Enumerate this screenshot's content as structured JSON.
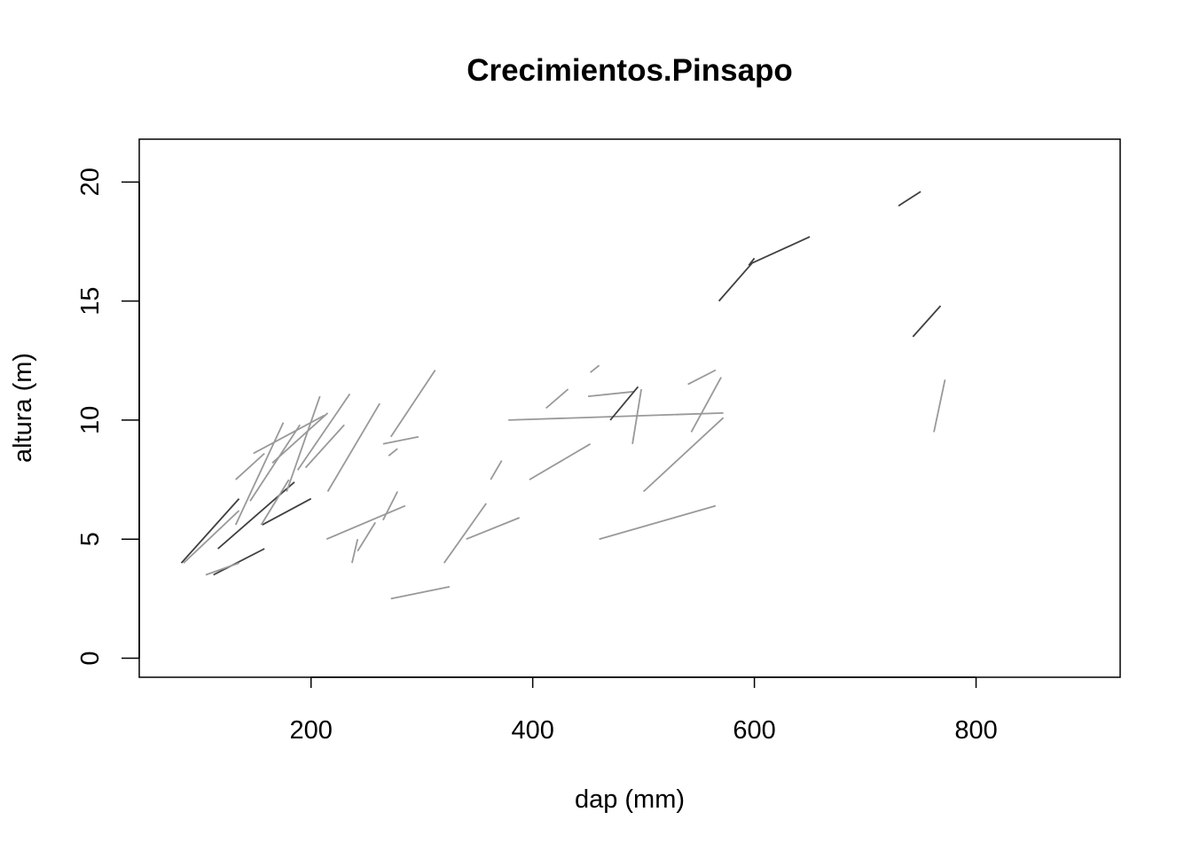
{
  "chart_data": {
    "type": "line",
    "title": "Crecimientos.Pinsapo",
    "xlabel": "dap (mm)",
    "ylabel": "altura (m)",
    "xlim": [
      45,
      930
    ],
    "ylim": [
      -0.8,
      21.8
    ],
    "x_ticks": [
      200,
      400,
      600,
      800
    ],
    "x_tick_labels": [
      "200",
      "400",
      "600",
      "800"
    ],
    "y_ticks": [
      0,
      5,
      10,
      15,
      20
    ],
    "y_tick_labels": [
      "0",
      "5",
      "10",
      "15",
      "20"
    ],
    "grid": false,
    "legend": "none",
    "colors": {
      "light": "#999999",
      "dark": "#404040"
    },
    "series": [
      {
        "shade": "dark",
        "x": [
          83,
          135
        ],
        "y": [
          4.0,
          6.7
        ]
      },
      {
        "shade": "dark",
        "x": [
          116,
          185
        ],
        "y": [
          4.6,
          7.4
        ]
      },
      {
        "shade": "dark",
        "x": [
          112,
          158
        ],
        "y": [
          3.5,
          4.6
        ]
      },
      {
        "shade": "dark",
        "x": [
          156,
          200
        ],
        "y": [
          5.6,
          6.7
        ]
      },
      {
        "shade": "light",
        "x": [
          85,
          135
        ],
        "y": [
          4.0,
          6.2
        ]
      },
      {
        "shade": "light",
        "x": [
          105,
          135
        ],
        "y": [
          3.5,
          4.0
        ]
      },
      {
        "shade": "light",
        "x": [
          132,
          158
        ],
        "y": [
          7.5,
          8.6
        ]
      },
      {
        "shade": "light",
        "x": [
          132,
          175
        ],
        "y": [
          5.6,
          9.9
        ]
      },
      {
        "shade": "light",
        "x": [
          145,
          190
        ],
        "y": [
          6.6,
          9.8
        ]
      },
      {
        "shade": "light",
        "x": [
          148,
          212
        ],
        "y": [
          8.6,
          10.2
        ]
      },
      {
        "shade": "light",
        "x": [
          155,
          180
        ],
        "y": [
          5.6,
          7.5
        ]
      },
      {
        "shade": "light",
        "x": [
          165,
          215
        ],
        "y": [
          8.2,
          10.3
        ]
      },
      {
        "shade": "light",
        "x": [
          178,
          208
        ],
        "y": [
          7.0,
          11.0
        ]
      },
      {
        "shade": "light",
        "x": [
          188,
          235
        ],
        "y": [
          7.9,
          11.1
        ]
      },
      {
        "shade": "light",
        "x": [
          195,
          230
        ],
        "y": [
          8.0,
          9.8
        ]
      },
      {
        "shade": "light",
        "x": [
          215,
          262
        ],
        "y": [
          7.0,
          10.7
        ]
      },
      {
        "shade": "light",
        "x": [
          214,
          285
        ],
        "y": [
          5.0,
          6.4
        ]
      },
      {
        "shade": "light",
        "x": [
          237,
          242
        ],
        "y": [
          4.0,
          5.0
        ]
      },
      {
        "shade": "light",
        "x": [
          242,
          258
        ],
        "y": [
          4.5,
          5.7
        ]
      },
      {
        "shade": "light",
        "x": [
          265,
          278
        ],
        "y": [
          5.8,
          7.0
        ]
      },
      {
        "shade": "light",
        "x": [
          265,
          297
        ],
        "y": [
          9.0,
          9.3
        ]
      },
      {
        "shade": "light",
        "x": [
          270,
          278
        ],
        "y": [
          8.5,
          8.8
        ]
      },
      {
        "shade": "light",
        "x": [
          272,
          312
        ],
        "y": [
          9.3,
          12.1
        ]
      },
      {
        "shade": "light",
        "x": [
          272,
          325
        ],
        "y": [
          2.5,
          3.0
        ]
      },
      {
        "shade": "light",
        "x": [
          320,
          358
        ],
        "y": [
          4.0,
          6.5
        ]
      },
      {
        "shade": "light",
        "x": [
          340,
          388
        ],
        "y": [
          5.0,
          5.9
        ]
      },
      {
        "shade": "light",
        "x": [
          362,
          372
        ],
        "y": [
          7.5,
          8.3
        ]
      },
      {
        "shade": "light",
        "x": [
          378,
          572
        ],
        "y": [
          10.0,
          10.3
        ]
      },
      {
        "shade": "light",
        "x": [
          397,
          452
        ],
        "y": [
          7.5,
          9.0
        ]
      },
      {
        "shade": "light",
        "x": [
          412,
          432
        ],
        "y": [
          10.5,
          11.3
        ]
      },
      {
        "shade": "light",
        "x": [
          450,
          492
        ],
        "y": [
          11.0,
          11.2
        ]
      },
      {
        "shade": "light",
        "x": [
          452,
          460
        ],
        "y": [
          12.0,
          12.3
        ]
      },
      {
        "shade": "light",
        "x": [
          460,
          565
        ],
        "y": [
          5.0,
          6.4
        ]
      },
      {
        "shade": "light",
        "x": [
          490,
          498
        ],
        "y": [
          9.0,
          11.3
        ]
      },
      {
        "shade": "light",
        "x": [
          500,
          572
        ],
        "y": [
          7.0,
          10.1
        ]
      },
      {
        "shade": "light",
        "x": [
          540,
          565
        ],
        "y": [
          11.5,
          12.1
        ]
      },
      {
        "shade": "light",
        "x": [
          543,
          570
        ],
        "y": [
          9.5,
          11.8
        ]
      },
      {
        "shade": "light",
        "x": [
          762,
          772
        ],
        "y": [
          9.5,
          11.7
        ]
      },
      {
        "shade": "dark",
        "x": [
          470,
          495
        ],
        "y": [
          10.0,
          11.4
        ]
      },
      {
        "shade": "dark",
        "x": [
          568,
          598,
          650
        ],
        "y": [
          15.0,
          16.6,
          17.7
        ]
      },
      {
        "shade": "dark",
        "x": [
          595,
          600
        ],
        "y": [
          16.5,
          16.8
        ]
      },
      {
        "shade": "dark",
        "x": [
          730,
          750
        ],
        "y": [
          19.0,
          19.6
        ]
      },
      {
        "shade": "dark",
        "x": [
          743,
          768
        ],
        "y": [
          13.5,
          14.8
        ]
      }
    ]
  }
}
